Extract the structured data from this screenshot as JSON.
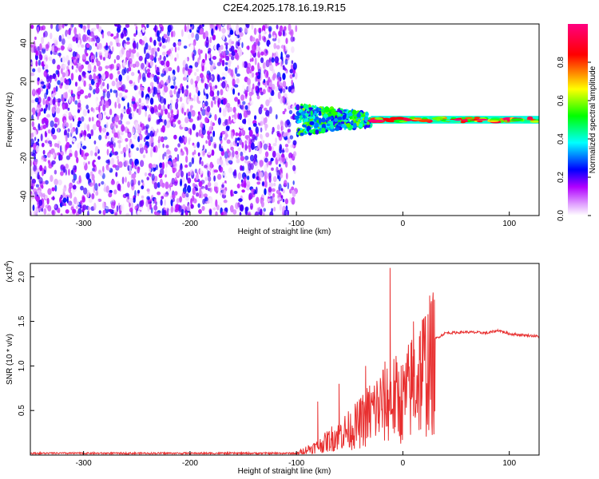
{
  "title": "C2E4.2025.178.16.19.R15",
  "chart_data": [
    {
      "type": "heatmap",
      "xlabel": "Height of straight line (km)",
      "ylabel": "Frequency (Hz)",
      "xlim": [
        -350,
        128
      ],
      "ylim": [
        -50,
        50
      ],
      "xticks": [
        -300,
        -200,
        -100,
        0,
        100
      ],
      "yticks": [
        -40,
        -20,
        0,
        20,
        40
      ],
      "colorbar": {
        "label": "Normalized spectral amplitude",
        "range": [
          0,
          1
        ],
        "ticks": [
          "0.0",
          "0.2",
          "0.4",
          "0.6",
          "0.8"
        ],
        "colors": [
          "#ffffff",
          "#b000ff",
          "#0000ff",
          "#00ffff",
          "#00ff00",
          "#ffff00",
          "#ff0000",
          "#ff0080"
        ]
      },
      "regions": [
        {
          "name": "noise",
          "x": [
            -350,
            -100
          ],
          "y": [
            -50,
            50
          ],
          "amplitude": [
            0.0,
            0.25
          ]
        },
        {
          "name": "transition",
          "x": [
            -100,
            -30
          ],
          "y": [
            -8,
            8
          ],
          "amplitude": [
            0.2,
            0.6
          ]
        },
        {
          "name": "tone",
          "x": [
            -30,
            128
          ],
          "y": [
            -2,
            2
          ],
          "amplitude": [
            0.4,
            1.0
          ]
        }
      ]
    },
    {
      "type": "line",
      "xlabel": "Height of straight line (km)",
      "ylabel": "SNR (10 * v/v)",
      "yscale_label": "(x10",
      "yscale_exp": "4",
      "yscale_close": ")",
      "xlim": [
        -350,
        128
      ],
      "ylim": [
        0,
        2.15
      ],
      "xticks": [
        -300,
        -200,
        -100,
        0,
        100
      ],
      "yticks": [
        "0.5",
        "1.0",
        "1.5",
        "2.0"
      ],
      "color": "#e83030",
      "series": [
        {
          "x": [
            -350,
            -100,
            -90,
            -80,
            -70,
            -60,
            -50,
            -40,
            -30,
            -20,
            -10,
            0,
            10,
            20,
            30,
            40,
            60,
            80,
            90,
            100,
            110,
            120,
            128
          ],
          "y": [
            0.01,
            0.02,
            0.08,
            0.12,
            0.2,
            0.3,
            0.35,
            0.45,
            0.6,
            0.7,
            0.8,
            0.75,
            1.0,
            1.2,
            1.3,
            1.37,
            1.38,
            1.37,
            1.4,
            1.36,
            1.35,
            1.34,
            1.33
          ]
        }
      ],
      "spikes": [
        {
          "x": -12,
          "y": 2.1
        },
        {
          "x": 10,
          "y": 1.5
        },
        {
          "x": -35,
          "y": 1.0
        },
        {
          "x": -60,
          "y": 0.8
        },
        {
          "x": -80,
          "y": 0.6
        }
      ]
    }
  ]
}
